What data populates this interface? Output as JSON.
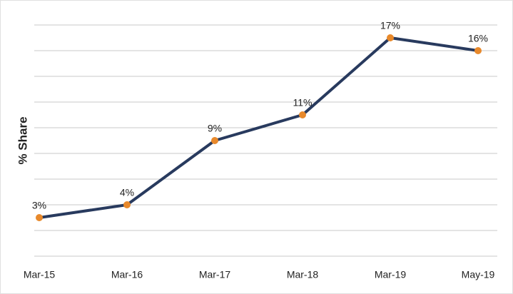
{
  "chart_data": {
    "type": "line",
    "y_label": "% Share",
    "categories": [
      "Mar-15",
      "Mar-16",
      "Mar-17",
      "Mar-18",
      "Mar-19",
      "May-19"
    ],
    "series": [
      {
        "name": "% Share",
        "color": "#283a5e",
        "marker_color": "#e8892b",
        "values": [
          3,
          4,
          9,
          11,
          17,
          16
        ],
        "value_labels": [
          "3%",
          "4%",
          "9%",
          "11%",
          "17%",
          "16%"
        ]
      }
    ],
    "ylim": [
      0,
      18
    ],
    "yticks": [
      0,
      2,
      4,
      6,
      8,
      10,
      12,
      14,
      16,
      18
    ],
    "grid": true
  }
}
